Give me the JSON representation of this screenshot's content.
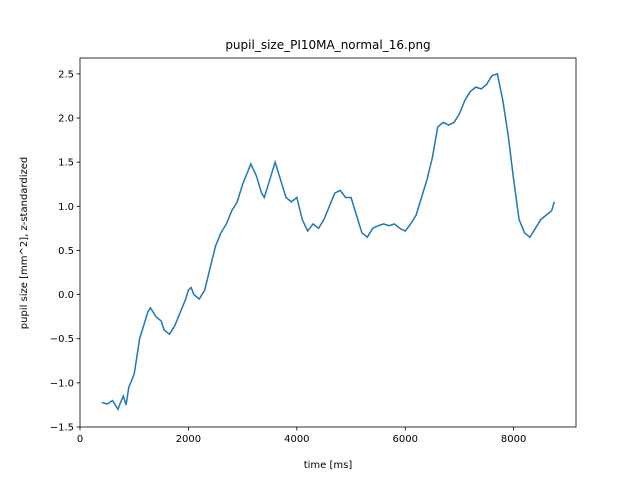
{
  "chart_data": {
    "type": "line",
    "title": "pupil_size_PI10MA_normal_16.png",
    "x_label": "time [ms]",
    "y_label": "pupil size [mm^2], z-standardized",
    "x": [
      400,
      500,
      600,
      650,
      700,
      750,
      800,
      850,
      900,
      1000,
      1050,
      1100,
      1200,
      1250,
      1300,
      1400,
      1500,
      1550,
      1650,
      1750,
      1850,
      1950,
      2000,
      2050,
      2100,
      2200,
      2300,
      2400,
      2500,
      2600,
      2700,
      2800,
      2900,
      3000,
      3100,
      3150,
      3250,
      3350,
      3400,
      3500,
      3600,
      3700,
      3800,
      3900,
      4000,
      4100,
      4200,
      4300,
      4400,
      4500,
      4600,
      4700,
      4800,
      4900,
      5000,
      5100,
      5200,
      5300,
      5400,
      5500,
      5600,
      5700,
      5800,
      5900,
      6000,
      6100,
      6200,
      6300,
      6400,
      6500,
      6600,
      6700,
      6800,
      6900,
      7000,
      7100,
      7200,
      7300,
      7400,
      7500,
      7600,
      7700,
      7800,
      7900,
      8000,
      8100,
      8200,
      8300,
      8400,
      8500,
      8600,
      8700,
      8750
    ],
    "series": [
      {
        "color": "#1f77b4",
        "values": [
          -1.22,
          -1.24,
          -1.2,
          -1.25,
          -1.3,
          -1.22,
          -1.15,
          -1.25,
          -1.05,
          -0.9,
          -0.7,
          -0.5,
          -0.3,
          -0.2,
          -0.15,
          -0.25,
          -0.3,
          -0.4,
          -0.45,
          -0.35,
          -0.2,
          -0.05,
          0.05,
          0.08,
          0.0,
          -0.05,
          0.05,
          0.3,
          0.55,
          0.7,
          0.8,
          0.95,
          1.05,
          1.25,
          1.4,
          1.48,
          1.35,
          1.15,
          1.1,
          1.3,
          1.5,
          1.3,
          1.1,
          1.05,
          1.1,
          0.85,
          0.72,
          0.8,
          0.75,
          0.85,
          1.0,
          1.15,
          1.18,
          1.1,
          1.1,
          0.9,
          0.7,
          0.65,
          0.75,
          0.78,
          0.8,
          0.78,
          0.8,
          0.75,
          0.72,
          0.8,
          0.9,
          1.1,
          1.3,
          1.55,
          1.9,
          1.95,
          1.92,
          1.95,
          2.05,
          2.2,
          2.3,
          2.35,
          2.33,
          2.38,
          2.48,
          2.5,
          2.2,
          1.8,
          1.3,
          0.85,
          0.7,
          0.65,
          0.75,
          0.85,
          0.9,
          0.95,
          1.05
        ]
      }
    ],
    "xlim": [
      0,
      9150
    ],
    "ylim": [
      -1.5,
      2.68
    ],
    "xticks": [
      0,
      2000,
      4000,
      6000,
      8000
    ],
    "yticks": [
      {
        "value": -1.5,
        "label": "−1.5"
      },
      {
        "value": -1.0,
        "label": "−1.0"
      },
      {
        "value": -0.5,
        "label": "−0.5"
      },
      {
        "value": 0,
        "label": "0.0"
      },
      0.5,
      {
        "value": 1,
        "label": "1.0"
      },
      1.5,
      {
        "value": 2,
        "label": "2.0"
      },
      2.5
    ]
  }
}
